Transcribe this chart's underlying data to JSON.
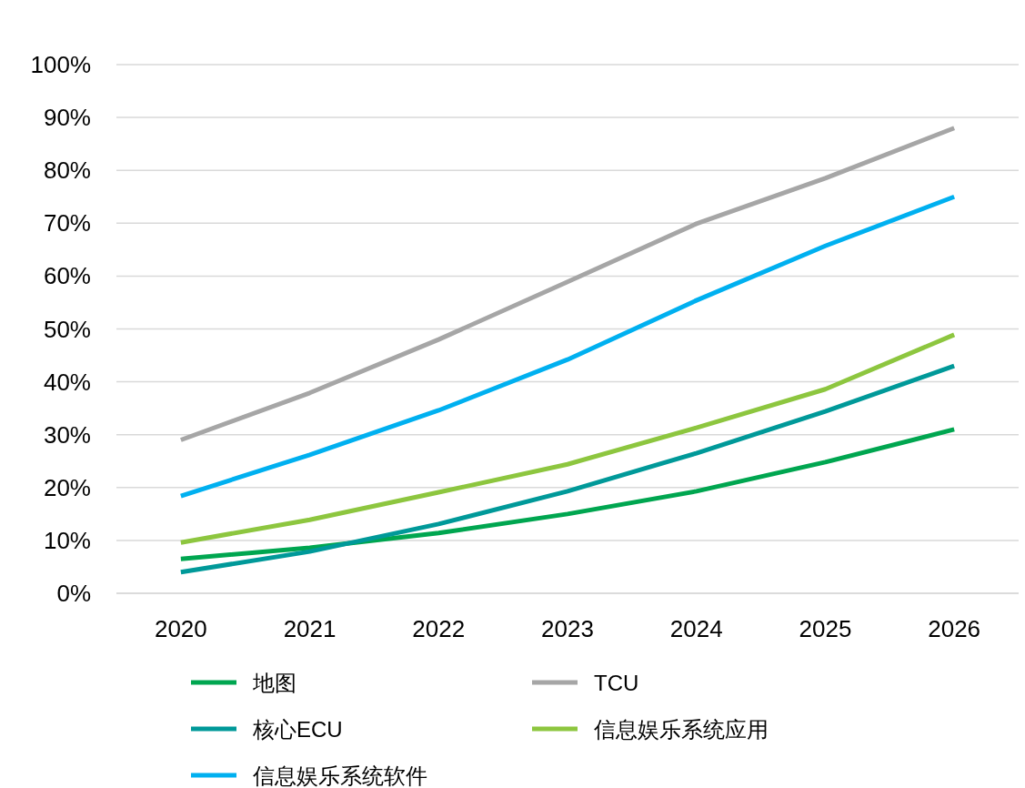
{
  "chart_data": {
    "type": "line",
    "categories": [
      "2020",
      "2021",
      "2022",
      "2023",
      "2024",
      "2025",
      "2026"
    ],
    "ylim": [
      0,
      100
    ],
    "yticks": [
      {
        "value": 0,
        "label": "0%"
      },
      {
        "value": 10,
        "label": "10%"
      },
      {
        "value": 20,
        "label": "20%"
      },
      {
        "value": 30,
        "label": "30%"
      },
      {
        "value": 40,
        "label": "40%"
      },
      {
        "value": 50,
        "label": "50%"
      },
      {
        "value": 60,
        "label": "60%"
      },
      {
        "value": 70,
        "label": "70%"
      },
      {
        "value": 80,
        "label": "80%"
      },
      {
        "value": 90,
        "label": "90%"
      },
      {
        "value": 100,
        "label": "100%"
      }
    ],
    "grid": "y",
    "legend": "bottom",
    "line_style": "solid",
    "series": [
      {
        "name": "地图",
        "color": "#00a650",
        "values": [
          6.5,
          8.6,
          11.4,
          15,
          19.3,
          24.8,
          31
        ]
      },
      {
        "name": "TCU",
        "color": "#a6a6a6",
        "values": [
          29,
          37.9,
          48,
          58.9,
          69.9,
          78.5,
          88
        ]
      },
      {
        "name": "核心ECU",
        "color": "#009999",
        "values": [
          4,
          7.9,
          13.1,
          19.3,
          26.5,
          34.4,
          43
        ]
      },
      {
        "name": "信息娱乐系统应用",
        "color": "#8dc63f",
        "values": [
          9.6,
          13.9,
          19.1,
          24.4,
          31.3,
          38.6,
          48.9
        ]
      },
      {
        "name": "信息娱乐系统软件",
        "color": "#00b0f0",
        "values": [
          18.4,
          26.2,
          34.6,
          44.2,
          55.4,
          65.7,
          75
        ]
      }
    ]
  }
}
